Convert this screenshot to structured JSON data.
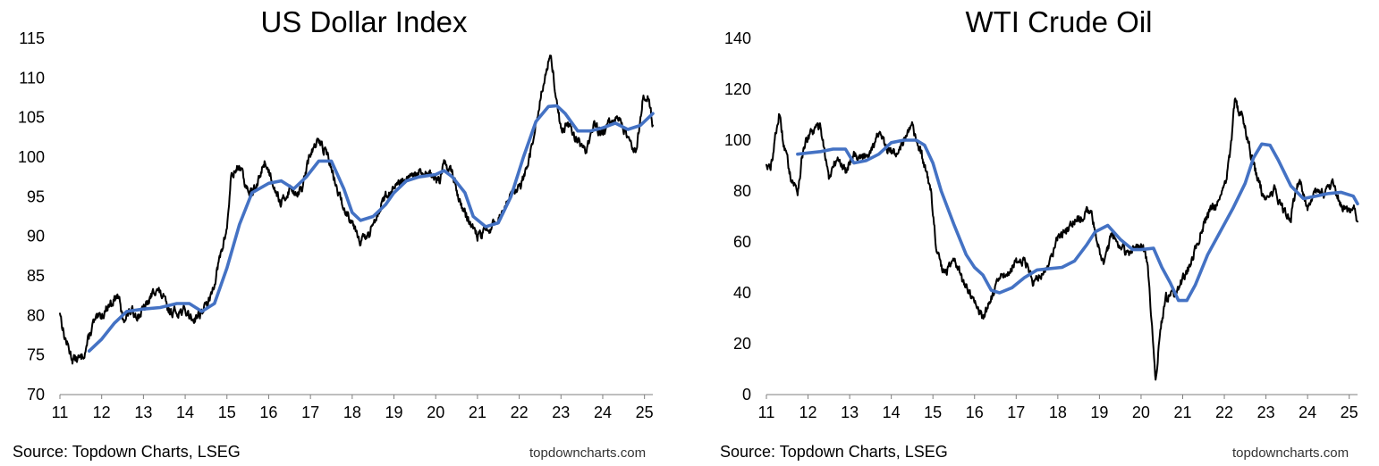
{
  "charts": [
    {
      "title": "US Dollar Index",
      "source": "Source: Topdown Charts, LSEG",
      "brand": "topdowncharts.com",
      "colors": {
        "price": "#000000",
        "average": "#4472C4"
      },
      "chart_data": {
        "type": "line",
        "title": "US Dollar Index",
        "xlabel": "",
        "ylabel": "",
        "xlim": [
          2011.0,
          2025.2
        ],
        "ylim": [
          70,
          115
        ],
        "yticks": [
          70,
          75,
          80,
          85,
          90,
          95,
          100,
          105,
          110,
          115
        ],
        "xticks": [
          "11",
          "12",
          "13",
          "14",
          "15",
          "16",
          "17",
          "18",
          "19",
          "20",
          "21",
          "22",
          "23",
          "24",
          "25"
        ],
        "grid": false,
        "legend": "none",
        "series": [
          {
            "color": "#000000",
            "x": [
              2011.0,
              2011.1,
              2011.3,
              2011.5,
              2011.6,
              2011.8,
              2012.0,
              2012.2,
              2012.4,
              2012.5,
              2012.7,
              2012.9,
              2013.1,
              2013.3,
              2013.5,
              2013.6,
              2013.8,
              2014.0,
              2014.2,
              2014.4,
              2014.6,
              2014.8,
              2015.0,
              2015.1,
              2015.3,
              2015.5,
              2015.7,
              2015.9,
              2016.1,
              2016.3,
              2016.5,
              2016.7,
              2016.8,
              2017.0,
              2017.2,
              2017.4,
              2017.6,
              2017.8,
              2018.0,
              2018.2,
              2018.4,
              2018.6,
              2018.8,
              2019.0,
              2019.3,
              2019.6,
              2019.9,
              2020.1,
              2020.2,
              2020.4,
              2020.6,
              2020.8,
              2021.0,
              2021.2,
              2021.4,
              2021.6,
              2021.8,
              2022.0,
              2022.2,
              2022.4,
              2022.6,
              2022.75,
              2022.9,
              2023.0,
              2023.2,
              2023.4,
              2023.6,
              2023.8,
              2024.0,
              2024.2,
              2024.4,
              2024.6,
              2024.8,
              2024.95,
              2025.1,
              2025.2
            ],
            "values": [
              80.5,
              77.5,
              74.5,
              74.5,
              75.5,
              79,
              80,
              81.5,
              82.5,
              79.5,
              80.5,
              80,
              81.5,
              83.5,
              82,
              80.5,
              80.5,
              80.5,
              79.5,
              80.5,
              82,
              86.5,
              91,
              97.5,
              99,
              95.5,
              96,
              99.5,
              97,
              94,
              96,
              95.5,
              96,
              100.5,
              102,
              100.5,
              96.5,
              93.5,
              92,
              89.5,
              90,
              93,
              95,
              96,
              97,
              98,
              97.5,
              97,
              99.5,
              98,
              94,
              92,
              90,
              90.5,
              91.5,
              93,
              95,
              96,
              98.5,
              104,
              110,
              113,
              107,
              103.5,
              104,
              102,
              101,
              104,
              103,
              104.5,
              105,
              102,
              101,
              107,
              108,
              104
            ]
          },
          {
            "color": "#4472C4",
            "x": [
              2011.7,
              2012.0,
              2012.3,
              2012.6,
              2013.0,
              2013.4,
              2013.8,
              2014.1,
              2014.4,
              2014.7,
              2015.0,
              2015.3,
              2015.6,
              2016.0,
              2016.3,
              2016.6,
              2016.9,
              2017.2,
              2017.5,
              2017.8,
              2018.0,
              2018.2,
              2018.5,
              2018.8,
              2019.0,
              2019.3,
              2019.6,
              2020.0,
              2020.2,
              2020.4,
              2020.7,
              2020.9,
              2021.2,
              2021.5,
              2021.8,
              2022.1,
              2022.4,
              2022.7,
              2022.9,
              2023.1,
              2023.4,
              2023.7,
              2024.0,
              2024.3,
              2024.6,
              2024.9,
              2025.2
            ],
            "values": [
              75.5,
              77,
              79,
              80.5,
              80.8,
              81,
              81.5,
              81.5,
              80.5,
              81.5,
              86,
              91.5,
              95.5,
              96.7,
              97,
              96,
              97.5,
              99.5,
              99.5,
              96,
              93,
              92,
              92.5,
              94,
              95.5,
              97,
              97.5,
              97.8,
              98.3,
              97.5,
              95.5,
              92.5,
              91.2,
              91.7,
              95,
              100,
              104.5,
              106.4,
              106.5,
              105.5,
              103.3,
              103.3,
              103.7,
              104.3,
              103.5,
              104,
              105.5
            ]
          }
        ]
      }
    },
    {
      "title": "WTI Crude Oil",
      "source": "Source: Topdown Charts, LSEG",
      "brand": "topdowncharts.com",
      "colors": {
        "price": "#000000",
        "average": "#4472C4"
      },
      "chart_data": {
        "type": "line",
        "title": "WTI Crude Oil",
        "xlabel": "",
        "ylabel": "",
        "xlim": [
          2011.0,
          2025.2
        ],
        "ylim": [
          0,
          140
        ],
        "yticks": [
          0,
          20,
          40,
          60,
          80,
          100,
          120,
          140
        ],
        "xticks": [
          "11",
          "12",
          "13",
          "14",
          "15",
          "16",
          "17",
          "18",
          "19",
          "20",
          "21",
          "22",
          "23",
          "24",
          "25"
        ],
        "grid": false,
        "legend": "none",
        "series": [
          {
            "color": "#000000",
            "x": [
              2011.0,
              2011.1,
              2011.2,
              2011.3,
              2011.4,
              2011.6,
              2011.75,
              2011.9,
              2012.1,
              2012.3,
              2012.5,
              2012.7,
              2012.9,
              2013.1,
              2013.3,
              2013.5,
              2013.7,
              2013.9,
              2014.1,
              2014.3,
              2014.5,
              2014.6,
              2014.8,
              2014.95,
              2015.1,
              2015.3,
              2015.5,
              2015.7,
              2015.9,
              2016.05,
              2016.2,
              2016.4,
              2016.6,
              2016.8,
              2017.0,
              2017.2,
              2017.4,
              2017.6,
              2017.8,
              2018.0,
              2018.2,
              2018.4,
              2018.6,
              2018.8,
              2018.95,
              2019.1,
              2019.3,
              2019.5,
              2019.7,
              2019.9,
              2020.05,
              2020.15,
              2020.25,
              2020.3,
              2020.35,
              2020.45,
              2020.6,
              2020.8,
              2021.0,
              2021.2,
              2021.4,
              2021.6,
              2021.8,
              2022.0,
              2022.15,
              2022.25,
              2022.4,
              2022.5,
              2022.7,
              2022.9,
              2023.0,
              2023.2,
              2023.4,
              2023.6,
              2023.8,
              2024.0,
              2024.2,
              2024.4,
              2024.6,
              2024.8,
              2025.0,
              2025.1,
              2025.2
            ],
            "values": [
              91,
              88,
              100,
              110,
              100,
              85,
              80,
              98,
              103,
              106,
              85,
              93,
              88,
              95,
              93,
              96,
              103,
              96,
              95,
              100,
              105,
              100,
              90,
              80,
              55,
              47,
              55,
              45,
              40,
              35,
              30,
              38,
              45,
              48,
              52,
              53,
              45,
              47,
              52,
              62,
              64,
              68,
              70,
              73,
              60,
              51,
              63,
              58,
              55,
              58,
              58,
              52,
              30,
              20,
              5,
              25,
              38,
              40,
              45,
              52,
              62,
              70,
              75,
              80,
              95,
              115,
              110,
              105,
              90,
              80,
              77,
              80,
              73,
              70,
              85,
              73,
              80,
              78,
              82,
              75,
              72,
              75,
              68
            ]
          },
          {
            "color": "#4472C4",
            "x": [
              2011.75,
              2012.0,
              2012.3,
              2012.6,
              2012.9,
              2013.1,
              2013.4,
              2013.7,
              2014.0,
              2014.3,
              2014.6,
              2014.8,
              2015.0,
              2015.2,
              2015.5,
              2015.8,
              2016.0,
              2016.2,
              2016.4,
              2016.6,
              2016.9,
              2017.2,
              2017.5,
              2017.8,
              2018.1,
              2018.4,
              2018.7,
              2018.9,
              2019.2,
              2019.5,
              2019.8,
              2020.0,
              2020.3,
              2020.5,
              2020.7,
              2020.9,
              2021.1,
              2021.3,
              2021.6,
              2021.9,
              2022.2,
              2022.5,
              2022.7,
              2022.9,
              2023.1,
              2023.3,
              2023.6,
              2023.9,
              2024.2,
              2024.5,
              2024.8,
              2025.1,
              2025.2
            ],
            "values": [
              94.5,
              95,
              95.5,
              96.5,
              96.5,
              91,
              92,
              94.5,
              99,
              100,
              100,
              98,
              91,
              80,
              67,
              55,
              50,
              47,
              41,
              40,
              42,
              46,
              49,
              49.5,
              50,
              52.5,
              59,
              64,
              66.5,
              61,
              57,
              57,
              57.5,
              50,
              44,
              37,
              37,
              43,
              55,
              64,
              73,
              83,
              93,
              98.5,
              98,
              92,
              82,
              77,
              78,
              79,
              79.5,
              78,
              75
            ]
          }
        ]
      }
    }
  ]
}
